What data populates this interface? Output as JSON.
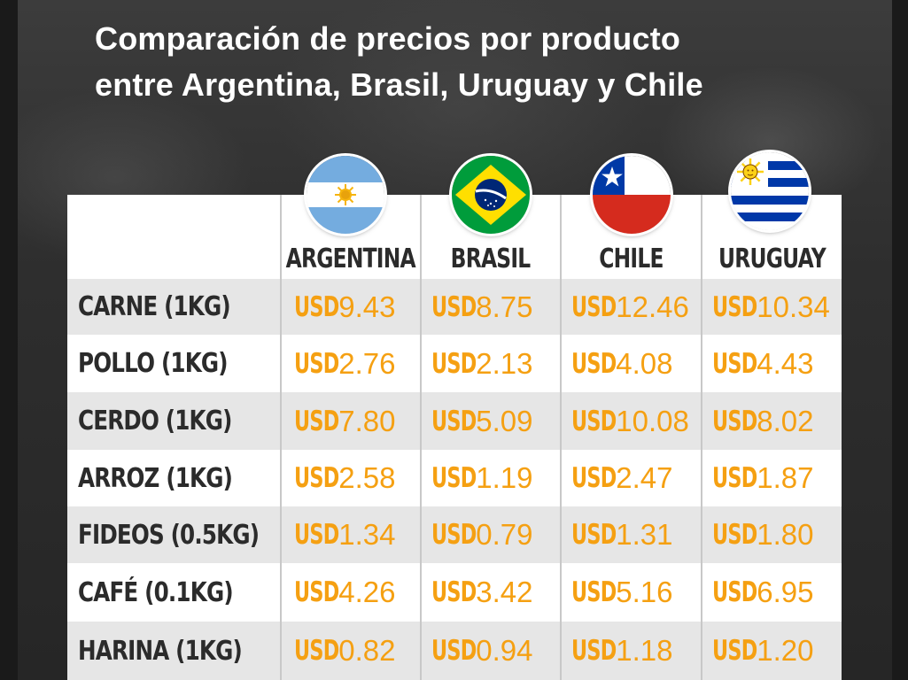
{
  "title": {
    "line1": "Comparación de precios por producto",
    "line2": "entre Argentina, Brasil, Uruguay y Chile"
  },
  "columns": [
    {
      "name": "ARGENTINA",
      "flag_icon": "argentina-flag-icon"
    },
    {
      "name": "BRASIL",
      "flag_icon": "brazil-flag-icon"
    },
    {
      "name": "CHILE",
      "flag_icon": "chile-flag-icon"
    },
    {
      "name": "URUGUAY",
      "flag_icon": "uruguay-flag-icon"
    }
  ],
  "currency": "USD",
  "rows": [
    {
      "label": "CARNE (1KG)",
      "values": [
        "9.43",
        "8.75",
        "12.46",
        "10.34"
      ]
    },
    {
      "label": "POLLO (1KG)",
      "values": [
        "2.76",
        "2.13",
        "4.08",
        "4.43"
      ]
    },
    {
      "label": "CERDO (1KG)",
      "values": [
        "7.80",
        "5.09",
        "10.08",
        "8.02"
      ]
    },
    {
      "label": "ARROZ (1KG)",
      "values": [
        "2.58",
        "1.19",
        "2.47",
        "1.87"
      ]
    },
    {
      "label": "FIDEOS (0.5KG)",
      "values": [
        "1.34",
        "0.79",
        "1.31",
        "1.80"
      ]
    },
    {
      "label": "CAFÉ (0.1KG)",
      "values": [
        "4.26",
        "3.42",
        "5.16",
        "6.95"
      ]
    },
    {
      "label": "HARINA (1KG)",
      "values": [
        "0.82",
        "0.94",
        "1.18",
        "1.20"
      ]
    }
  ],
  "colors": {
    "price": "#f5a012",
    "label": "#2b2b2b",
    "row_shaded": "#e6e6e6"
  }
}
